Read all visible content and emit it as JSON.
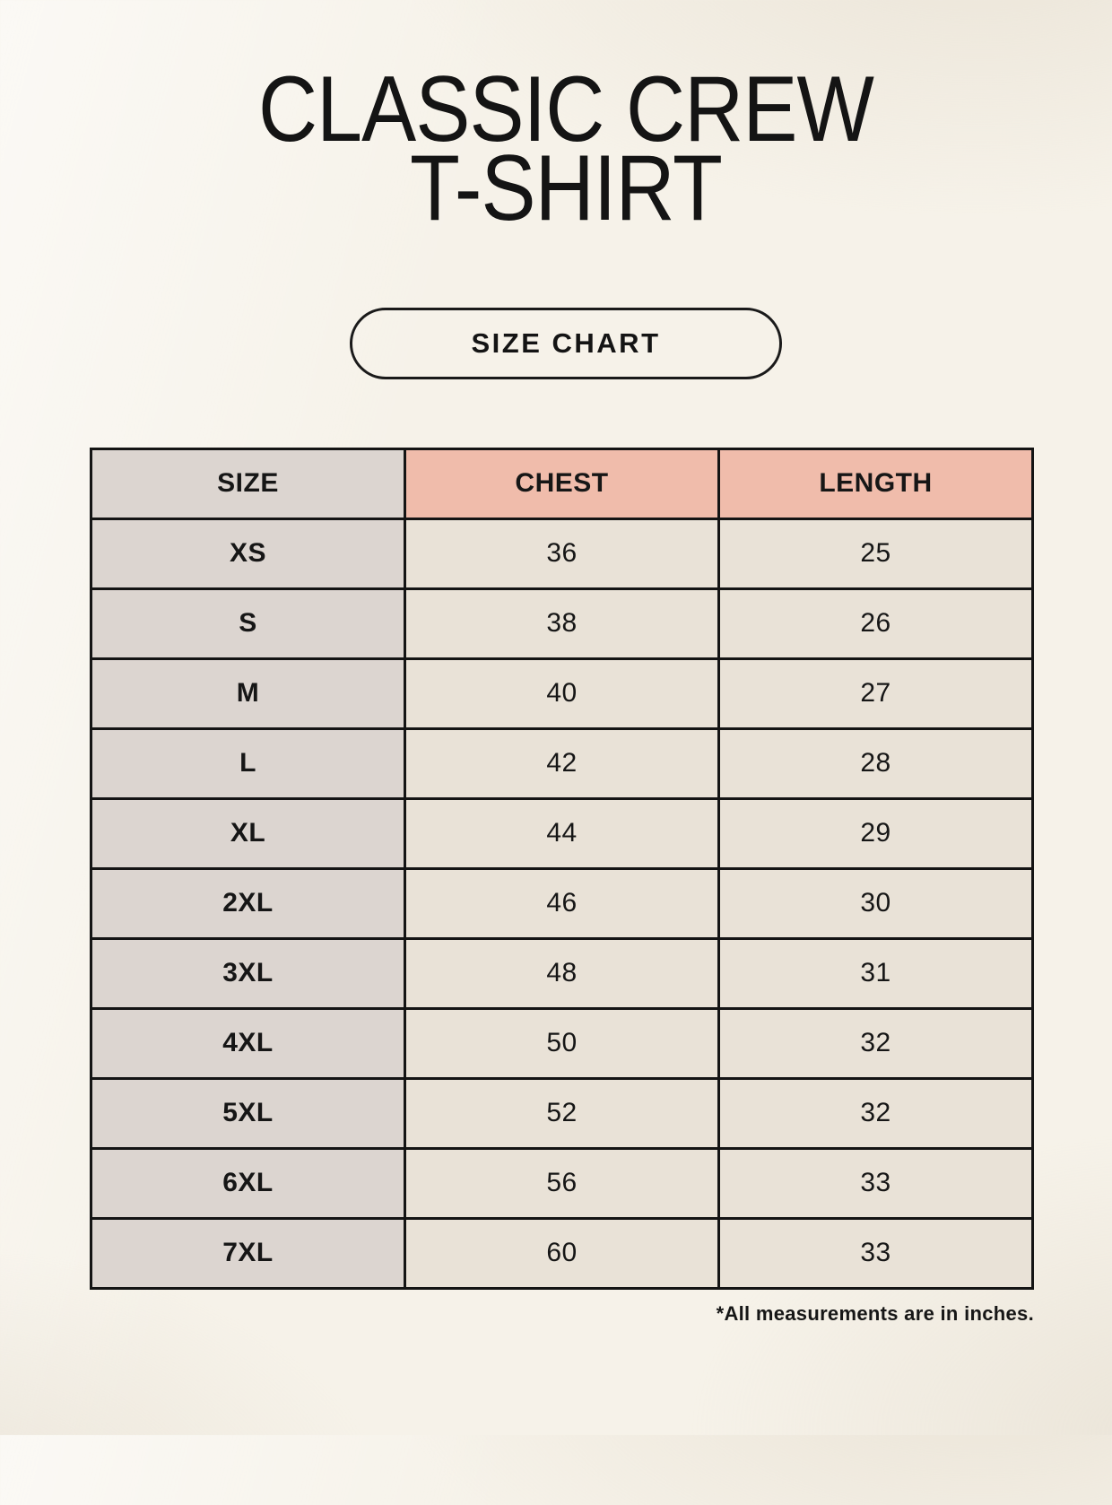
{
  "page": {
    "title_line1": "CLASSIC CREW",
    "title_line2": "T-SHIRT",
    "size_chart_button": "SIZE CHART",
    "footnote": "*All measurements are in inches."
  },
  "colors": {
    "page_background": "#f6f2e9",
    "size_column_bg": "#dcd5d0",
    "header_accent_bg": "#f0bcab",
    "value_cell_bg": "#e9e2d7",
    "table_border": "#141414",
    "text": "#161616"
  },
  "chart_data": {
    "type": "table",
    "title": "CLASSIC CREW T-SHIRT SIZE CHART",
    "units": "inches",
    "columns": [
      "SIZE",
      "CHEST",
      "LENGTH"
    ],
    "rows": [
      [
        "XS",
        "36",
        "25"
      ],
      [
        "S",
        "38",
        "26"
      ],
      [
        "M",
        "40",
        "27"
      ],
      [
        "L",
        "42",
        "28"
      ],
      [
        "XL",
        "44",
        "29"
      ],
      [
        "2XL",
        "46",
        "30"
      ],
      [
        "3XL",
        "48",
        "31"
      ],
      [
        "4XL",
        "50",
        "32"
      ],
      [
        "5XL",
        "52",
        "32"
      ],
      [
        "6XL",
        "56",
        "33"
      ],
      [
        "7XL",
        "60",
        "33"
      ]
    ]
  }
}
